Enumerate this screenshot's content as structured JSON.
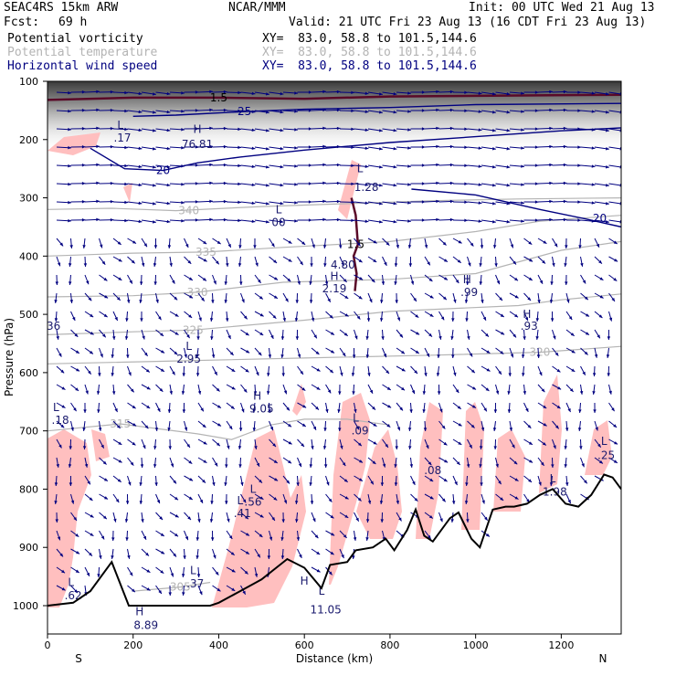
{
  "header": {
    "model": "SEAC4RS 15km ARW",
    "org": "NCAR/MMM",
    "init": "Init: 00 UTC Wed 21 Aug 13",
    "fcst_label": "Fcst:",
    "fcst_value": "69 h",
    "valid": "Valid: 21 UTC Fri 23 Aug 13 (16 CDT Fri 23 Aug 13)",
    "fields": [
      {
        "name": "Potential vorticity",
        "xy": "XY=  83.0, 58.8 to 101.5,144.6",
        "color": "#000000"
      },
      {
        "name": "Potential temperature",
        "xy": "XY=  83.0, 58.8 to 101.5,144.6",
        "color": "#b4b4b4"
      },
      {
        "name": "Horizontal wind speed",
        "xy": "XY=  83.0, 58.8 to 101.5,144.6",
        "color": "#000080"
      }
    ]
  },
  "chart_data": {
    "type": "cross-section",
    "xlabel": "Distance (km)",
    "ylabel": "Pressure (hPa)",
    "x_ticks": [
      "0",
      "200",
      "400",
      "600",
      "800",
      "1000",
      "1200"
    ],
    "y_ticks": [
      "100",
      "200",
      "300",
      "400",
      "500",
      "600",
      "700",
      "800",
      "900",
      "1000"
    ],
    "x_end_labels": {
      "left": "S",
      "right": "N"
    },
    "xlim": [
      0,
      1340
    ],
    "ylim": [
      1050,
      100
    ],
    "terrain": [
      [
        0,
        1000
      ],
      [
        60,
        995
      ],
      [
        100,
        975
      ],
      [
        150,
        925
      ],
      [
        190,
        1000
      ],
      [
        300,
        1000
      ],
      [
        380,
        1000
      ],
      [
        400,
        995
      ],
      [
        450,
        975
      ],
      [
        500,
        955
      ],
      [
        560,
        920
      ],
      [
        600,
        935
      ],
      [
        640,
        970
      ],
      [
        660,
        930
      ],
      [
        700,
        925
      ],
      [
        720,
        905
      ],
      [
        760,
        900
      ],
      [
        790,
        885
      ],
      [
        810,
        905
      ],
      [
        840,
        870
      ],
      [
        860,
        835
      ],
      [
        880,
        880
      ],
      [
        900,
        890
      ],
      [
        940,
        850
      ],
      [
        960,
        840
      ],
      [
        990,
        885
      ],
      [
        1010,
        900
      ],
      [
        1040,
        835
      ],
      [
        1070,
        830
      ],
      [
        1090,
        830
      ],
      [
        1120,
        825
      ],
      [
        1150,
        810
      ],
      [
        1180,
        800
      ],
      [
        1210,
        825
      ],
      [
        1240,
        830
      ],
      [
        1270,
        810
      ],
      [
        1300,
        775
      ],
      [
        1320,
        780
      ],
      [
        1340,
        800
      ]
    ],
    "theta_contours": [
      {
        "label": "340",
        "x": 330,
        "p": 322,
        "points": [
          [
            0,
            320
          ],
          [
            150,
            318
          ],
          [
            300,
            322
          ],
          [
            500,
            315
          ],
          [
            700,
            310
          ],
          [
            900,
            305
          ],
          [
            1100,
            302
          ],
          [
            1340,
            300
          ]
        ]
      },
      {
        "label": "335",
        "x": 370,
        "p": 393,
        "points": [
          [
            0,
            400
          ],
          [
            200,
            395
          ],
          [
            370,
            393
          ],
          [
            550,
            385
          ],
          [
            800,
            375
          ],
          [
            1000,
            358
          ],
          [
            1150,
            340
          ],
          [
            1340,
            330
          ]
        ]
      },
      {
        "label": "330",
        "x": 350,
        "p": 462,
        "points": [
          [
            0,
            470
          ],
          [
            200,
            468
          ],
          [
            350,
            462
          ],
          [
            550,
            445
          ],
          [
            800,
            440
          ],
          [
            1000,
            430
          ],
          [
            1200,
            390
          ],
          [
            1340,
            375
          ]
        ]
      },
      {
        "label": "325",
        "x": 340,
        "p": 527,
        "points": [
          [
            0,
            535
          ],
          [
            200,
            530
          ],
          [
            340,
            527
          ],
          [
            600,
            510
          ],
          [
            800,
            495
          ],
          [
            1100,
            485
          ],
          [
            1200,
            475
          ],
          [
            1340,
            465
          ]
        ]
      },
      {
        "label": "320",
        "x": 1150,
        "p": 565,
        "points": [
          [
            0,
            585
          ],
          [
            300,
            580
          ],
          [
            600,
            575
          ],
          [
            900,
            570
          ],
          [
            1150,
            565
          ],
          [
            1340,
            555
          ]
        ]
      },
      {
        "label": "315",
        "x": 170,
        "p": 688,
        "points": [
          [
            0,
            700
          ],
          [
            170,
            688
          ],
          [
            350,
            705
          ],
          [
            430,
            715
          ],
          [
            520,
            690
          ],
          [
            600,
            680
          ],
          [
            700,
            680
          ],
          [
            800,
            690
          ]
        ]
      },
      {
        "label": "305",
        "x": 310,
        "p": 968,
        "points": [
          [
            200,
            975
          ],
          [
            310,
            968
          ],
          [
            380,
            960
          ]
        ]
      }
    ],
    "wind_speed_contours": [
      {
        "label": "20",
        "x": 270,
        "p": 253,
        "points": [
          [
            100,
            215
          ],
          [
            180,
            250
          ],
          [
            270,
            253
          ],
          [
            350,
            240
          ],
          [
            450,
            230
          ],
          [
            600,
            218
          ],
          [
            800,
            205
          ],
          [
            1000,
            195
          ],
          [
            1200,
            185
          ],
          [
            1340,
            180
          ]
        ]
      },
      {
        "label": "20",
        "x": 1290,
        "p": 335,
        "points": [
          [
            850,
            285
          ],
          [
            1000,
            295
          ],
          [
            1150,
            320
          ],
          [
            1250,
            335
          ],
          [
            1340,
            350
          ]
        ]
      },
      {
        "label": "25",
        "x": 460,
        "p": 152,
        "points": [
          [
            200,
            160
          ],
          [
            300,
            158
          ],
          [
            460,
            152
          ],
          [
            600,
            148
          ],
          [
            800,
            145
          ],
          [
            1000,
            140
          ],
          [
            1340,
            138
          ]
        ]
      }
    ],
    "pv_contours": [
      {
        "label": "1.5",
        "x": 400,
        "p": 128,
        "points": [
          [
            0,
            132
          ],
          [
            200,
            128
          ],
          [
            400,
            128
          ],
          [
            600,
            130
          ],
          [
            800,
            126
          ],
          [
            1000,
            125
          ],
          [
            1340,
            123
          ]
        ]
      },
      {
        "label": "1.5",
        "x": 720,
        "p": 380,
        "points": [
          [
            710,
            300
          ],
          [
            720,
            330
          ],
          [
            725,
            380
          ],
          [
            715,
            400
          ],
          [
            722,
            430
          ],
          [
            718,
            460
          ]
        ]
      }
    ],
    "pv_positive_regions": [
      "lower troposphere convective columns",
      "upper level patches"
    ],
    "annotations": [
      {
        "text": "L",
        "x": 170,
        "p": 175
      },
      {
        "text": ".17",
        "x": 175,
        "p": 197
      },
      {
        "text": "H",
        "x": 350,
        "p": 182
      },
      {
        "text": "76.81",
        "x": 350,
        "p": 208
      },
      {
        "text": "L",
        "x": 540,
        "p": 320
      },
      {
        "text": "00",
        "x": 540,
        "p": 342
      },
      {
        "text": "L",
        "x": 730,
        "p": 250
      },
      {
        "text": "1.28",
        "x": 745,
        "p": 282
      },
      {
        "text": "4.80",
        "x": 690,
        "p": 415
      },
      {
        "text": "H",
        "x": 670,
        "p": 435
      },
      {
        "text": "2.19",
        "x": 670,
        "p": 456
      },
      {
        "text": "H",
        "x": 980,
        "p": 440
      },
      {
        "text": ".99",
        "x": 985,
        "p": 462
      },
      {
        "text": "H",
        "x": 1120,
        "p": 500
      },
      {
        "text": ".93",
        "x": 1125,
        "p": 520
      },
      {
        "text": "L",
        "x": 330,
        "p": 555
      },
      {
        "text": "2.95",
        "x": 330,
        "p": 577
      },
      {
        "text": ".36",
        "x": 10,
        "p": 520
      },
      {
        "text": "L",
        "x": 20,
        "p": 660
      },
      {
        "text": ".18",
        "x": 30,
        "p": 682
      },
      {
        "text": "H",
        "x": 490,
        "p": 640
      },
      {
        "text": "9.05",
        "x": 500,
        "p": 662
      },
      {
        "text": "L",
        "x": 720,
        "p": 678
      },
      {
        "text": ".09",
        "x": 730,
        "p": 700
      },
      {
        "text": ".08",
        "x": 900,
        "p": 768
      },
      {
        "text": "L",
        "x": 1300,
        "p": 718
      },
      {
        "text": ".25",
        "x": 1305,
        "p": 742
      },
      {
        "text": "L",
        "x": 1180,
        "p": 782
      },
      {
        "text": "1.98",
        "x": 1185,
        "p": 805
      },
      {
        "text": "L",
        "x": 480,
        "p": 800
      },
      {
        "text": ".56",
        "x": 480,
        "p": 822
      },
      {
        "text": "L",
        "x": 450,
        "p": 820
      },
      {
        "text": ".41",
        "x": 455,
        "p": 842
      },
      {
        "text": "L",
        "x": 340,
        "p": 940
      },
      {
        "text": ".37",
        "x": 345,
        "p": 962
      },
      {
        "text": "L",
        "x": 55,
        "p": 960
      },
      {
        "text": ".62",
        "x": 60,
        "p": 983
      },
      {
        "text": "H",
        "x": 600,
        "p": 958
      },
      {
        "text": "L",
        "x": 640,
        "p": 975
      },
      {
        "text": "11.05",
        "x": 650,
        "p": 1007
      },
      {
        "text": "H",
        "x": 215,
        "p": 1010
      },
      {
        "text": "8.89",
        "x": 230,
        "p": 1034
      }
    ]
  },
  "colors": {
    "pv_fill": "#ffbfbf",
    "pv_contour": "#5a0a28",
    "theta": "#b4b4b4",
    "wind": "#000080",
    "terrain": "#000000"
  }
}
